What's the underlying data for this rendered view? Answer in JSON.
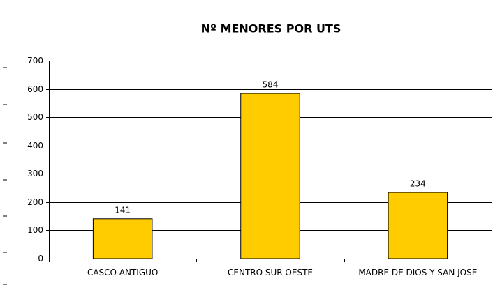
{
  "chart_data": {
    "type": "bar",
    "title": "Nº MENORES POR UTS",
    "categories": [
      "CASCO ANTIGUO",
      "CENTRO SUR OESTE",
      "MADRE DE DIOS Y SAN JOSE"
    ],
    "values": [
      141,
      584,
      234
    ],
    "color": "#ffcc00",
    "ylim": [
      0,
      700
    ],
    "yticks": [
      0,
      100,
      200,
      300,
      400,
      500,
      600,
      700
    ],
    "grid": true
  }
}
